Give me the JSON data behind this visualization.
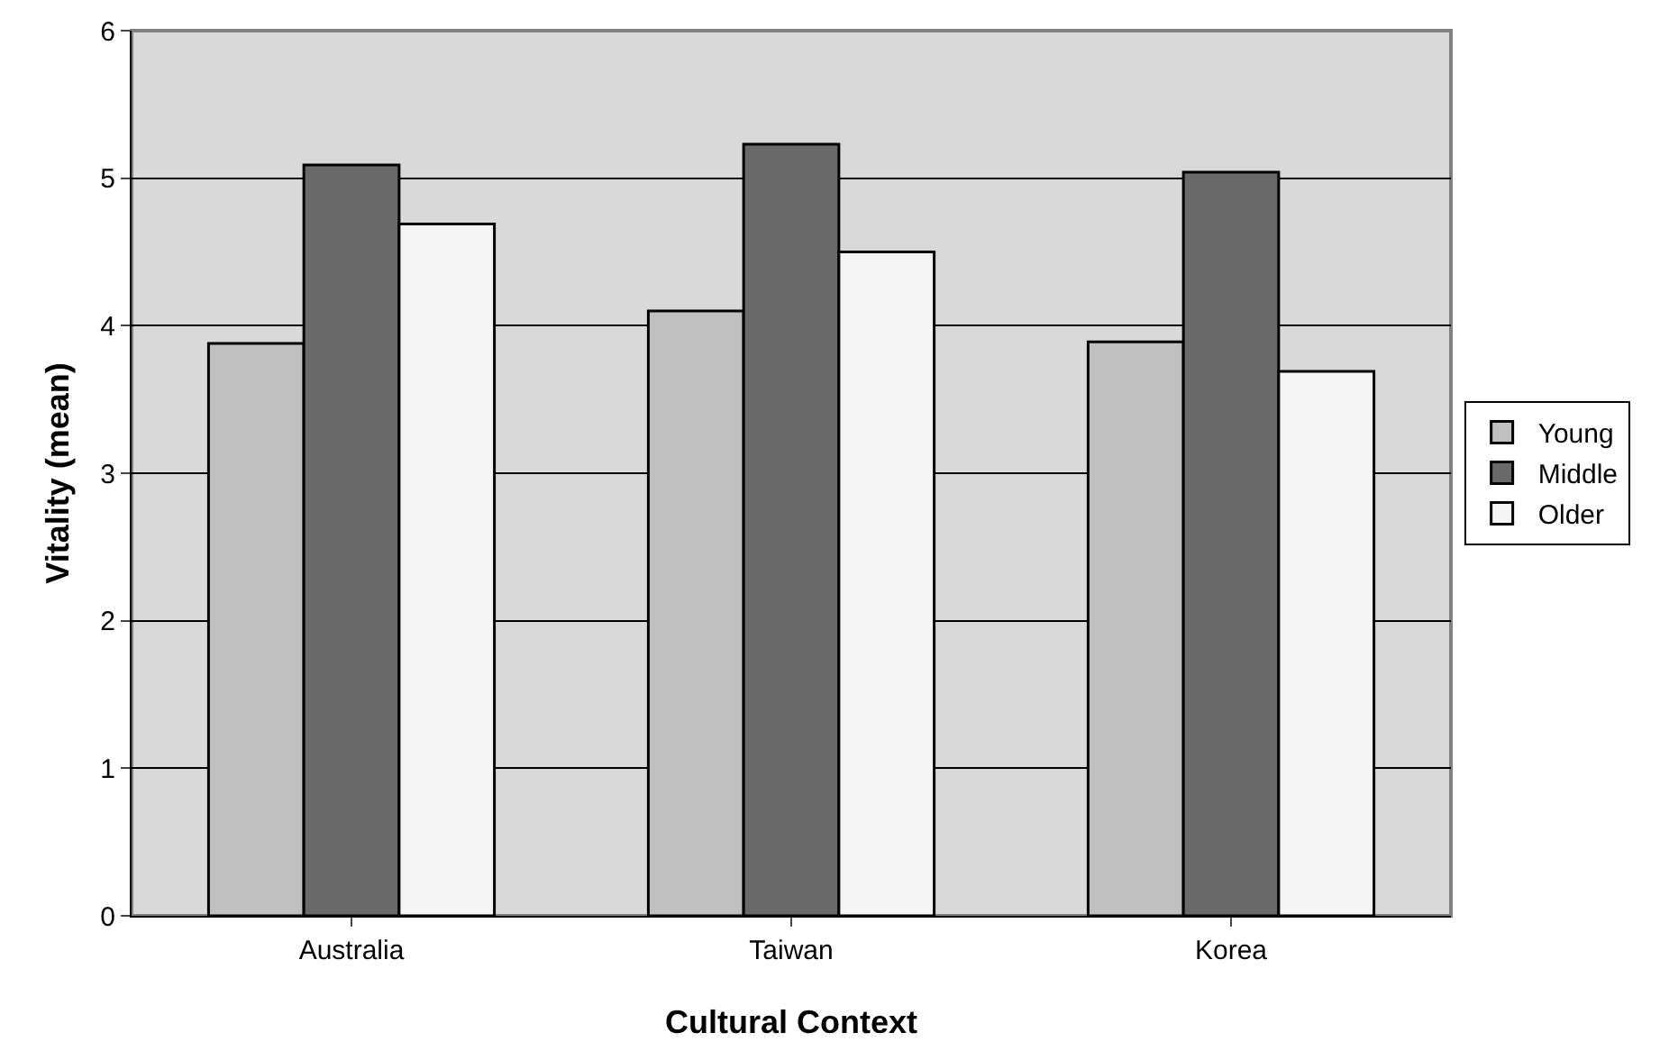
{
  "chart_data": {
    "type": "bar",
    "xlabel": "Cultural Context",
    "ylabel": "Vitality (mean)",
    "categories": [
      "Australia",
      "Taiwan",
      "Korea"
    ],
    "series": [
      {
        "name": "Young",
        "color": "#c0c0c0",
        "values": [
          3.88,
          4.1,
          3.89
        ]
      },
      {
        "name": "Middle",
        "color": "#696969",
        "values": [
          5.09,
          5.23,
          5.04
        ]
      },
      {
        "name": "Older",
        "color": "#f5f5f5",
        "values": [
          4.69,
          4.5,
          3.69
        ]
      }
    ],
    "ylim": [
      0,
      6
    ],
    "yticks": [
      0,
      1,
      2,
      3,
      4,
      5,
      6
    ],
    "grid": "y",
    "legend": "right"
  }
}
